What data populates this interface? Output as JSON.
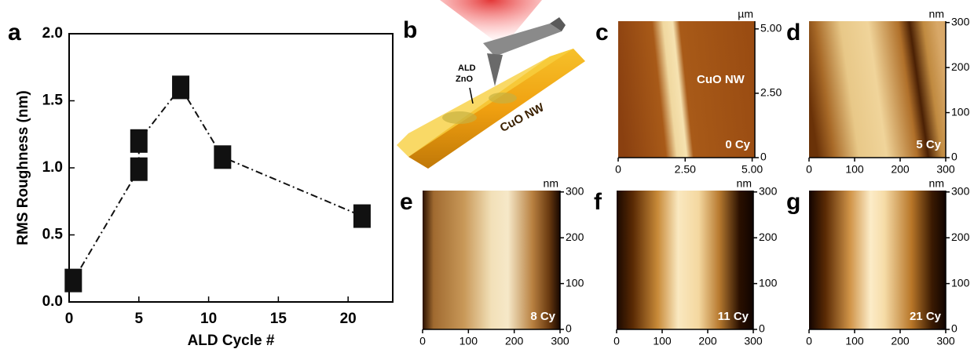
{
  "chart_data": [
    {
      "type": "line",
      "panel": "a",
      "xlabel": "ALD Cycle #",
      "ylabel": "RMS Roughness (nm)",
      "x": [
        0.3,
        5,
        5,
        8,
        11,
        21
      ],
      "values": [
        0.16,
        0.99,
        1.2,
        1.6,
        1.08,
        0.64
      ],
      "color": "#111111",
      "line_style": "dashdot",
      "marker": "square",
      "xlim": [
        0,
        23.2
      ],
      "xticks": [
        0,
        5,
        10,
        15,
        20
      ],
      "ylim": [
        0,
        2.0
      ],
      "yticks": [
        {
          "value": 0,
          "label": "0.0"
        },
        0.5,
        {
          "value": 1,
          "label": "1.0"
        },
        1.5,
        {
          "value": 2,
          "label": "2.0"
        }
      ]
    },
    {
      "type": "image",
      "panel": "c",
      "unit": "µm",
      "labels": [
        "CuO NW",
        "0 Cy"
      ],
      "xlim": [
        0,
        5.1
      ],
      "xticks": [
        0,
        {
          "value": 2.5,
          "label": "2.50"
        },
        {
          "value": 5,
          "label": "5.00"
        }
      ],
      "ylim": [
        0,
        5.3
      ],
      "yticks": [
        0,
        {
          "value": 2.5,
          "label": "2.50"
        },
        {
          "value": 5,
          "label": "5.00"
        }
      ]
    },
    {
      "type": "image",
      "panel": "d",
      "unit": "nm",
      "labels": [
        "5 Cy"
      ],
      "xlim": [
        0,
        300
      ],
      "xticks": [
        0,
        100,
        200,
        300
      ],
      "ylim": [
        0,
        303
      ],
      "yticks": [
        0,
        100,
        200,
        300
      ]
    },
    {
      "type": "image",
      "panel": "e",
      "unit": "nm",
      "labels": [
        "8 Cy"
      ],
      "xlim": [
        0,
        300
      ],
      "xticks": [
        0,
        100,
        200,
        300
      ],
      "ylim": [
        0,
        303
      ],
      "yticks": [
        0,
        100,
        200,
        300
      ]
    },
    {
      "type": "image",
      "panel": "f",
      "unit": "nm",
      "labels": [
        "11 Cy"
      ],
      "xlim": [
        0,
        300
      ],
      "xticks": [
        0,
        100,
        200,
        300
      ],
      "ylim": [
        0,
        303
      ],
      "yticks": [
        0,
        100,
        200,
        300
      ]
    },
    {
      "type": "image",
      "panel": "g",
      "unit": "nm",
      "labels": [
        "21 Cy"
      ],
      "xlim": [
        0,
        300
      ],
      "xticks": [
        0,
        100,
        200,
        300
      ],
      "ylim": [
        0,
        303
      ],
      "yticks": [
        0,
        100,
        200,
        300
      ]
    }
  ],
  "schematic": {
    "panel": "b",
    "labels": [
      "ALD",
      "ZnO",
      "CuO NW"
    ]
  }
}
